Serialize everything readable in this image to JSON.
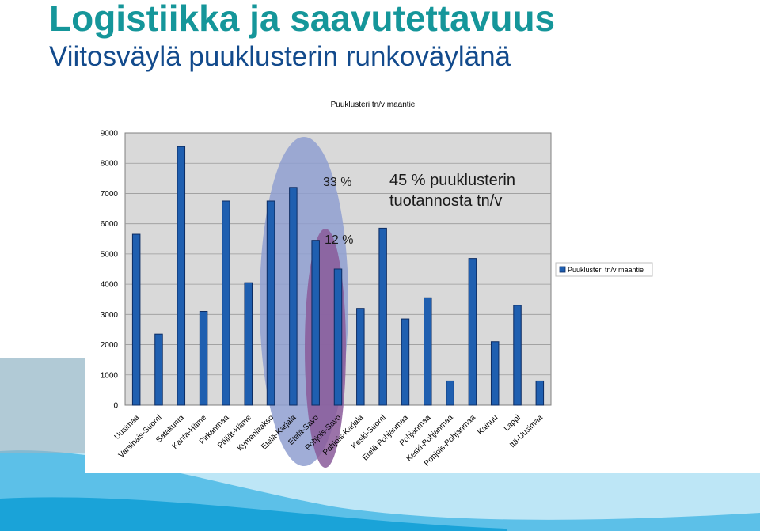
{
  "slide": {
    "title": "Logistiikka ja saavutettavuus",
    "subtitle": "Viitosväylä puuklusterin runkoväylänä"
  },
  "colors": {
    "title": "#15969a",
    "subtitle": "#124a8c",
    "bar_fill": "#1f5fb0",
    "bar_stroke": "#0c2c63",
    "outer_highlight": "#8f9fd0",
    "inner_highlight": "#8a5a9a",
    "footer_wave_light": "#bde6f6",
    "footer_wave_mid": "#5cc0e8",
    "footer_wave_dark": "#1aa3d8"
  },
  "chart_data": {
    "type": "bar",
    "title": "Puuklusteri tn/v maantie",
    "xlabel": "",
    "ylabel": "",
    "ylim": [
      0,
      9000
    ],
    "yticks": [
      0,
      1000,
      2000,
      3000,
      4000,
      5000,
      6000,
      7000,
      8000,
      9000
    ],
    "grid": true,
    "legend_position": "right",
    "categories": [
      "Uusimaa",
      "Varsinais-Suomi",
      "Satakunta",
      "Kanta-Häme",
      "Pirkanmaa",
      "Päijät-Häme",
      "Kymenlaakso",
      "Etelä-Karjala",
      "Etelä-Savo",
      "Pohjois-Savo",
      "Pohjois-Karjala",
      "Keski-Suomi",
      "Etelä-Pohjanmaa",
      "Pohjanmaa",
      "Keski-Pohjanmaa",
      "Pohjois-Pohjanmaa",
      "Kainuu",
      "Lappi",
      "Itä-Uusimaa"
    ],
    "series": [
      {
        "name": "Puuklusteri tn/v maantie",
        "values": [
          5650,
          2350,
          8550,
          3100,
          6750,
          4050,
          6750,
          7200,
          5450,
          4500,
          3200,
          5850,
          2850,
          3550,
          800,
          4850,
          2100,
          3300,
          800
        ]
      }
    ],
    "annotations": [
      {
        "text": "33 %"
      },
      {
        "text": "12 %"
      },
      {
        "text": "45 % puuklusterin tuotannosta tn/v"
      }
    ]
  }
}
